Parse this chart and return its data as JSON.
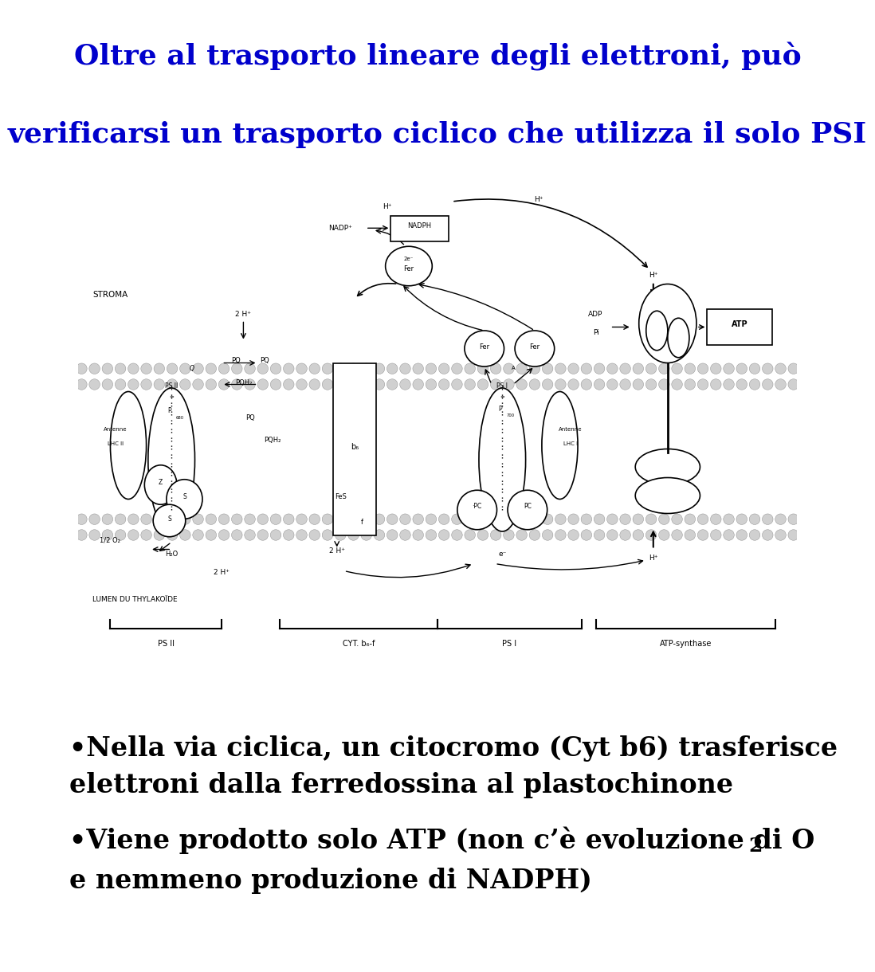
{
  "title_line1": "Oltre al trasporto lineare degli elettroni, può",
  "title_line2": "verificarsi un trasporto ciclico che utilizza il solo PSI",
  "title_color": "#0000CC",
  "title_fontsize": 26,
  "bullet1_line1": "•Nella via ciclica, un citocromo (Cyt b6) trasferisce",
  "bullet1_line2": "elettroni dalla ferredossina al plastochinone",
  "bullet2_line1_a": "•Viene prodotto solo ATP (non c’è evoluzione di O",
  "bullet2_sub": "2",
  "bullet2_line2": "e nemmeno produzione di NADPH)",
  "bullet_fontsize": 24,
  "bullet_color": "#000000",
  "bg_color": "#ffffff"
}
